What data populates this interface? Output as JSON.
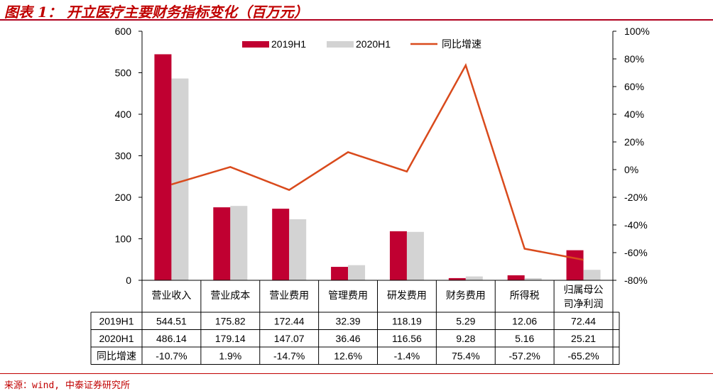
{
  "title": "图表 1： 开立医疗主要财务指标变化（百万元）",
  "source": "来源：wind, 中泰证券研究所",
  "colors": {
    "bar2019": "#c00031",
    "bar2020": "#d3d3d3",
    "line": "#d94a1c",
    "accent": "#c00000"
  },
  "chart_data": {
    "type": "bar",
    "categories": [
      "营业收入",
      "营业成本",
      "营业费用",
      "管理费用",
      "研发费用",
      "财务费用",
      "所得税",
      "归属母公司净利润"
    ],
    "category_lines": [
      [
        "营业收入"
      ],
      [
        "营业成本"
      ],
      [
        "营业费用"
      ],
      [
        "管理费用"
      ],
      [
        "研发费用"
      ],
      [
        "财务费用"
      ],
      [
        "所得税"
      ],
      [
        "归属母公",
        "司净利润"
      ]
    ],
    "series": [
      {
        "name": "2019H1",
        "type": "bar",
        "axis": "left",
        "values": [
          544.51,
          175.82,
          172.44,
          32.39,
          118.19,
          5.29,
          12.06,
          72.44
        ]
      },
      {
        "name": "2020H1",
        "type": "bar",
        "axis": "left",
        "values": [
          486.14,
          179.14,
          147.07,
          36.46,
          116.56,
          9.28,
          5.16,
          25.21
        ]
      },
      {
        "name": "同比增速",
        "type": "line",
        "axis": "right",
        "values": [
          -10.7,
          1.9,
          -14.7,
          12.6,
          -1.4,
          75.4,
          -57.2,
          -65.2
        ]
      }
    ],
    "y_left": {
      "min": 0,
      "max": 600,
      "ticks": [
        0,
        100,
        200,
        300,
        400,
        500,
        600
      ]
    },
    "y_right": {
      "min": -80,
      "max": 100,
      "ticks": [
        "-80%",
        "-60%",
        "-40%",
        "-20%",
        "0%",
        "20%",
        "40%",
        "60%",
        "80%",
        "100%"
      ]
    },
    "legend_position": "top-center",
    "grid": false,
    "table": {
      "rows": [
        {
          "label": "2019H1",
          "cells": [
            "544.51",
            "175.82",
            "172.44",
            "32.39",
            "118.19",
            "5.29",
            "12.06",
            "72.44"
          ]
        },
        {
          "label": "2020H1",
          "cells": [
            "486.14",
            "179.14",
            "147.07",
            "36.46",
            "116.56",
            "9.28",
            "5.16",
            "25.21"
          ]
        },
        {
          "label": "同比增速",
          "cells": [
            "-10.7%",
            "1.9%",
            "-14.7%",
            "12.6%",
            "-1.4%",
            "75.4%",
            "-57.2%",
            "-65.2%"
          ]
        }
      ]
    }
  }
}
